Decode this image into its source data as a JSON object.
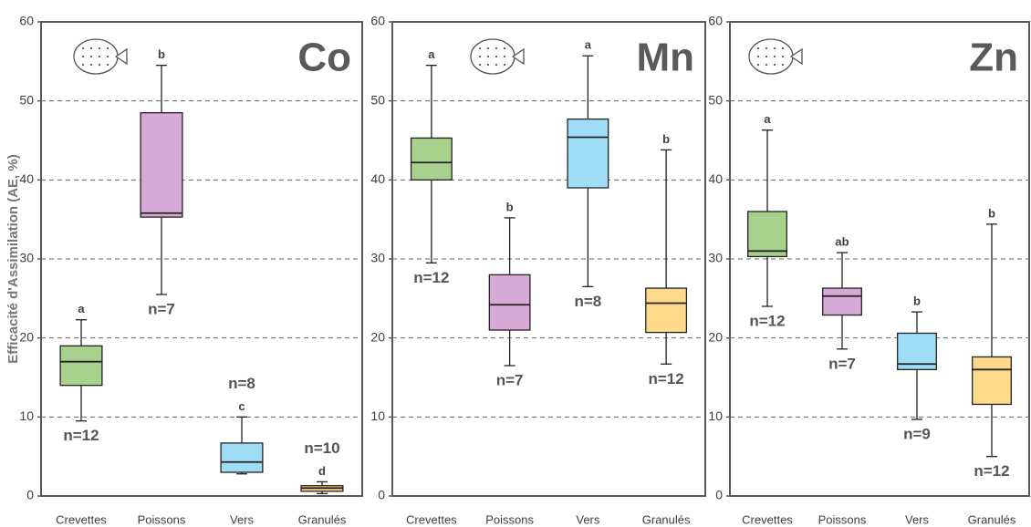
{
  "chart_data": [
    {
      "type": "box",
      "title": "Co",
      "ylabel": "Efficacité d'Assimilation (AE, %)",
      "categories": [
        "Crevettes",
        "Poissons",
        "Vers",
        "Granulés"
      ],
      "boxes": [
        {
          "min": 9.5,
          "q1": 14,
          "median": 17,
          "q3": 19,
          "max": 22.3,
          "color": "#a9d18e"
        },
        {
          "min": 25.5,
          "q1": 35.3,
          "median": 35.8,
          "q3": 48.5,
          "max": 54.5,
          "color": "#d9a9d6"
        },
        {
          "min": 2.8,
          "q1": 3,
          "median": 4.3,
          "q3": 6.7,
          "max": 10,
          "color": "#9fdcf5"
        },
        {
          "min": 0.3,
          "q1": 0.6,
          "median": 1.0,
          "q3": 1.3,
          "max": 1.8,
          "color": "#ffd98a"
        }
      ],
      "letters": [
        "a",
        "b",
        "c",
        "d"
      ],
      "n_labels": [
        "n=12",
        "n=7",
        "n=8",
        "n=10"
      ],
      "ylim": [
        0,
        60
      ],
      "yticks": [
        0,
        10,
        20,
        30,
        40,
        50,
        60
      ],
      "grid": true
    },
    {
      "type": "box",
      "title": "Mn",
      "categories": [
        "Crevettes",
        "Poissons",
        "Vers",
        "Granulés"
      ],
      "boxes": [
        {
          "min": 29.5,
          "q1": 40,
          "median": 42.2,
          "q3": 45.3,
          "max": 54.5,
          "color": "#a9d18e"
        },
        {
          "min": 16.5,
          "q1": 21,
          "median": 24.2,
          "q3": 28,
          "max": 35.2,
          "color": "#d9a9d6"
        },
        {
          "min": 26.5,
          "q1": 39,
          "median": 45.4,
          "q3": 47.7,
          "max": 55.7,
          "color": "#9fdcf5"
        },
        {
          "min": 16.7,
          "q1": 20.7,
          "median": 24.4,
          "q3": 26.3,
          "max": 43.8,
          "color": "#ffd98a"
        }
      ],
      "letters": [
        "a",
        "b",
        "a",
        "b"
      ],
      "n_labels": [
        "n=12",
        "n=7",
        "n=8",
        "n=12"
      ],
      "ylim": [
        0,
        60
      ],
      "yticks": [
        0,
        10,
        20,
        30,
        40,
        50,
        60
      ],
      "grid": true
    },
    {
      "type": "box",
      "title": "Zn",
      "categories": [
        "Crevettes",
        "Poissons",
        "Vers",
        "Granulés"
      ],
      "boxes": [
        {
          "min": 24,
          "q1": 30.3,
          "median": 31,
          "q3": 36,
          "max": 46.3,
          "color": "#a9d18e"
        },
        {
          "min": 18.6,
          "q1": 22.9,
          "median": 25.3,
          "q3": 26.3,
          "max": 30.8,
          "color": "#d9a9d6"
        },
        {
          "min": 9.7,
          "q1": 16,
          "median": 16.7,
          "q3": 20.6,
          "max": 23.3,
          "color": "#9fdcf5"
        },
        {
          "min": 5,
          "q1": 11.6,
          "median": 16,
          "q3": 17.6,
          "max": 34.4,
          "color": "#ffd98a"
        }
      ],
      "letters": [
        "a",
        "ab",
        "b",
        "b"
      ],
      "n_labels": [
        "n=12",
        "n=7",
        "n=9",
        "n=12"
      ],
      "ylim": [
        0,
        60
      ],
      "yticks": [
        0,
        10,
        20,
        30,
        40,
        50,
        60
      ],
      "grid": true
    }
  ]
}
